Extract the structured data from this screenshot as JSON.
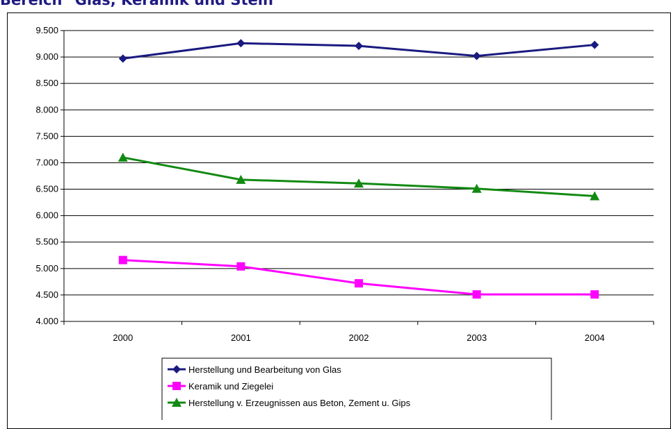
{
  "title": "Bereich \"Glas, Keramik und Stein\"",
  "chart_data": {
    "type": "line",
    "categories": [
      "2000",
      "2001",
      "2002",
      "2003",
      "2004"
    ],
    "ylim": [
      4000,
      9500
    ],
    "ytick_step": 500,
    "ytick_labels": [
      "4.000",
      "4.500",
      "5.000",
      "5.500",
      "6.000",
      "6.500",
      "7.000",
      "7.500",
      "8.000",
      "8.500",
      "9.000",
      "9.500"
    ],
    "grid": true,
    "legend_position": "bottom",
    "series": [
      {
        "name": "Herstellung und Bearbeitung von Glas",
        "values": [
          8970,
          9260,
          9210,
          9020,
          9230
        ],
        "color": "#1a1a80",
        "marker": "diamond"
      },
      {
        "name": "Keramik und Ziegelei",
        "values": [
          5160,
          5040,
          4720,
          4510,
          4510
        ],
        "color": "#ff00ff",
        "marker": "square"
      },
      {
        "name": "Herstellung v. Erzeugnissen aus Beton, Zement u. Gips",
        "values": [
          7100,
          6680,
          6610,
          6510,
          6370
        ],
        "color": "#128a12",
        "marker": "triangle"
      }
    ]
  }
}
